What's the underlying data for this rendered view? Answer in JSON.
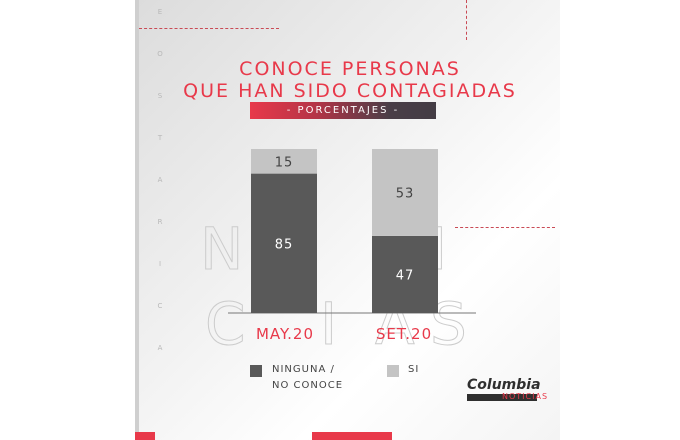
{
  "chart_data": {
    "type": "bar",
    "stacked": true,
    "title": "CONOCE PERSONAS\nQUE HAN SIDO CONTAGIADAS",
    "subtitle": "- PORCENTAJES -",
    "categories": [
      "MAY.20",
      "SET.20"
    ],
    "series": [
      {
        "name": "NINGUNA / NO CONOCE",
        "values": [
          85,
          47
        ],
        "color": "#595959"
      },
      {
        "name": "SI",
        "values": [
          15,
          53
        ],
        "color": "#c4c4c4"
      }
    ],
    "ylim": [
      0,
      100
    ],
    "grid": false,
    "legend_position": "bottom"
  },
  "title_line1": "CONOCE PERSONAS",
  "title_line2": "QUE HAN SIDO CONTAGIADAS",
  "legend": {
    "item1_line1": "NINGUNA /",
    "item1_line2": "NO CONOCE",
    "item2": "SI"
  },
  "side_text": [
    "E",
    "O",
    "S",
    "T",
    "A",
    "R",
    "I",
    "C",
    "A"
  ],
  "watermark": [
    "N",
    "I",
    "C",
    "I",
    "A",
    "S"
  ],
  "logo": {
    "name": "Columbia",
    "sub": "NOTICIAS"
  },
  "colors": {
    "accent": "#e8394a",
    "dark": "#595959",
    "light": "#c4c4c4"
  }
}
